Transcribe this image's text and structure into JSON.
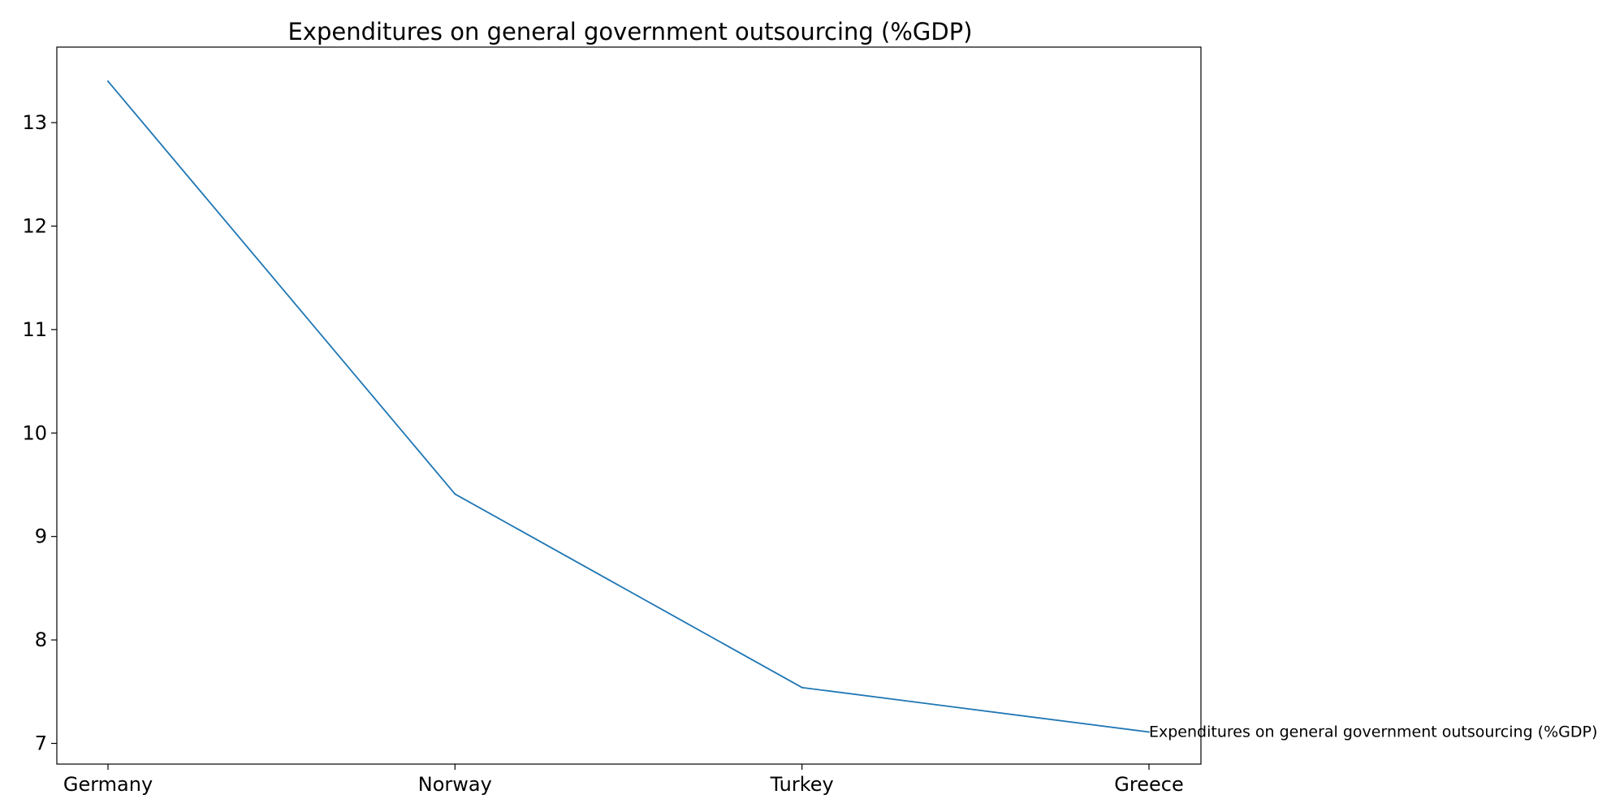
{
  "chart_data": {
    "type": "line",
    "title": "Expenditures on general government outsourcing (%GDP)",
    "xlabel": "",
    "ylabel": "",
    "categories": [
      "Germany",
      "Norway",
      "Turkey",
      "Greece"
    ],
    "series": [
      {
        "name": "Expenditures on general government outsourcing (%GDP)",
        "values": [
          13.4,
          9.41,
          7.54,
          7.11
        ],
        "color": "#1f77b4"
      }
    ],
    "ylim": [
      6.8,
      13.73
    ],
    "yticks": [
      7,
      8,
      9,
      10,
      11,
      12,
      13
    ],
    "grid": false,
    "legend": "inline-label-at-line-end"
  }
}
